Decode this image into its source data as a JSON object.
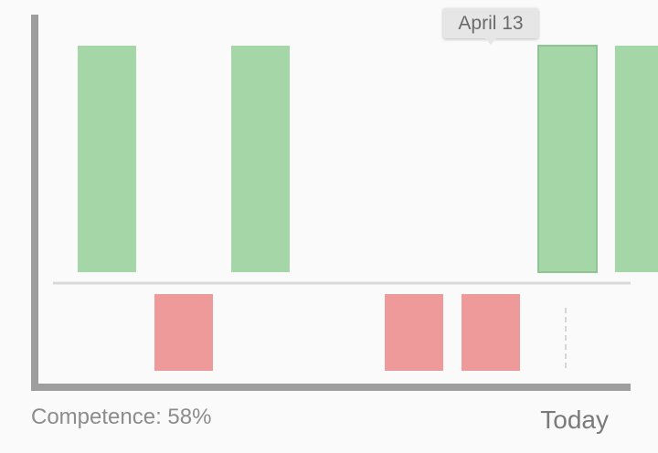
{
  "chart_data": {
    "type": "bar",
    "categories": [
      "",
      "",
      "",
      "",
      "",
      "",
      "",
      "",
      ""
    ],
    "values": [
      1,
      -1,
      1,
      0,
      -1,
      -1,
      1,
      1,
      0
    ],
    "ylim": [
      -1,
      1
    ],
    "grid": false,
    "colors": {
      "positive": "#a5d6a7",
      "negative": "#ef9a9a",
      "axis": "#9e9e9e",
      "baseline": "#d9d9d9"
    }
  },
  "tooltip": {
    "label": "April 13",
    "bar_index": 6
  },
  "footer": {
    "competence": "Competence: 58%",
    "today": "Today"
  }
}
